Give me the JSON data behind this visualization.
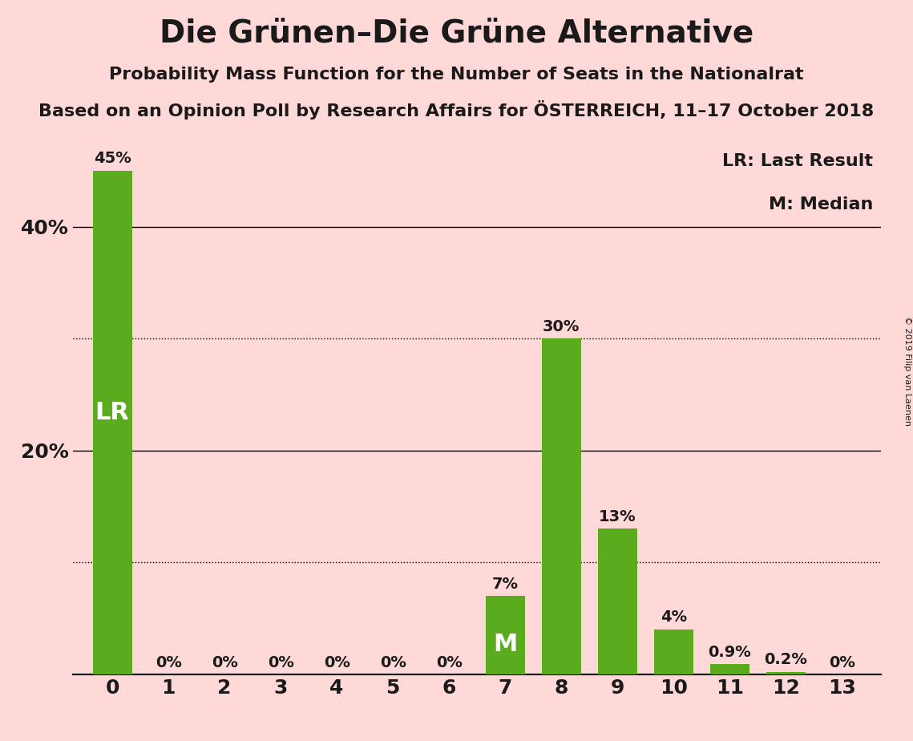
{
  "title": "Die Grünen–Die Grüne Alternative",
  "subtitle1": "Probability Mass Function for the Number of Seats in the Nationalrat",
  "subtitle2": "Based on an Opinion Poll by Research Affairs for ÖSTERREICH, 11–17 October 2018",
  "watermark": "© 2019 Filip van Laenen",
  "categories": [
    0,
    1,
    2,
    3,
    4,
    5,
    6,
    7,
    8,
    9,
    10,
    11,
    12,
    13
  ],
  "values": [
    45,
    0,
    0,
    0,
    0,
    0,
    0,
    7,
    30,
    13,
    4,
    0.9,
    0.2,
    0
  ],
  "bar_color": "#5aab1e",
  "background_color": "#ffd8d8",
  "text_color": "#1a1a1a",
  "ylim": [
    0,
    48
  ],
  "solid_gridlines": [
    20,
    40
  ],
  "dotted_gridlines": [
    10,
    30
  ],
  "ytick_positions": [
    20,
    40
  ],
  "ytick_labels": [
    "20%",
    "40%"
  ],
  "lr_bar": 0,
  "median_bar": 7,
  "lr_label": "LR",
  "median_label": "M",
  "legend_text1": "LR: Last Result",
  "legend_text2": "M: Median",
  "bar_labels": [
    "45%",
    "0%",
    "0%",
    "0%",
    "0%",
    "0%",
    "0%",
    "7%",
    "30%",
    "13%",
    "4%",
    "0.9%",
    "0.2%",
    "0%"
  ],
  "title_fontsize": 28,
  "subtitle_fontsize": 16,
  "tick_fontsize": 18,
  "bar_label_fontsize": 14,
  "legend_fontsize": 16,
  "inner_label_fontsize": 22,
  "inner_label_color": "#ffffff",
  "outer_label_color": "#1a1a1a",
  "watermark_fontsize": 8
}
